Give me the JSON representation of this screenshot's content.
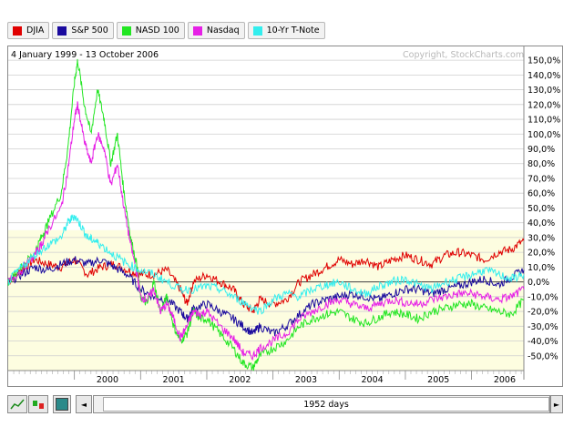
{
  "legend": [
    {
      "name": "DJIA",
      "color": "#e00000"
    },
    {
      "name": "S&P 500",
      "color": "#1a0a9e"
    },
    {
      "name": "NASD 100",
      "color": "#22e622"
    },
    {
      "name": "Nasdaq",
      "color": "#e620e6"
    },
    {
      "name": "10-Yr T-Note",
      "color": "#33eeee"
    }
  ],
  "header": {
    "date_range": "4 January 1999 - 13 October 2006",
    "copyright": "Copyright, StockCharts.com"
  },
  "toolbar": {
    "range_label": "1952 days",
    "scroll_left_icon": "◄",
    "scroll_right_icon": "►"
  },
  "chart_data": {
    "type": "line",
    "title": "",
    "subtitle": "4 January 1999 - 13 October 2006",
    "xlabel": "",
    "ylabel": "",
    "x_ticks": [
      "2000",
      "2001",
      "2002",
      "2003",
      "2004",
      "2005",
      "2006"
    ],
    "y_ticks": [
      "150,0%",
      "140,0%",
      "130,0%",
      "120,0%",
      "110,0%",
      "100,0%",
      "90,0%",
      "80,0%",
      "70,0%",
      "60,0%",
      "50,0%",
      "40,0%",
      "30,0%",
      "20,0%",
      "10,0%",
      "0,0%",
      "-10,0%",
      "-20,0%",
      "-30,0%",
      "-40,0%",
      "-50,0%"
    ],
    "ylim": [
      -60,
      155
    ],
    "xlim": [
      1999.0,
      2006.79
    ],
    "grid": true,
    "legend_position": "top",
    "series": [
      {
        "name": "DJIA",
        "color": "#e00000",
        "x": [
          1999.0,
          1999.2,
          1999.4,
          1999.6,
          1999.8,
          2000.0,
          2000.2,
          2000.4,
          2000.6,
          2000.8,
          2001.0,
          2001.2,
          2001.4,
          2001.6,
          2001.7,
          2001.8,
          2002.0,
          2002.2,
          2002.4,
          2002.55,
          2002.7,
          2002.8,
          2003.0,
          2003.2,
          2003.4,
          2003.6,
          2003.8,
          2004.0,
          2004.2,
          2004.4,
          2004.6,
          2004.8,
          2005.0,
          2005.2,
          2005.4,
          2005.6,
          2005.8,
          2006.0,
          2006.2,
          2006.4,
          2006.6,
          2006.79
        ],
        "y": [
          0,
          8,
          15,
          12,
          10,
          15,
          5,
          10,
          12,
          8,
          5,
          5,
          8,
          -5,
          -15,
          0,
          5,
          0,
          -5,
          -15,
          -20,
          -12,
          -15,
          -12,
          0,
          5,
          10,
          15,
          12,
          15,
          10,
          15,
          18,
          15,
          12,
          18,
          20,
          18,
          15,
          20,
          22,
          28
        ]
      },
      {
        "name": "S&P 500",
        "color": "#1a0a9e",
        "x": [
          1999.0,
          1999.2,
          1999.4,
          1999.6,
          1999.8,
          2000.0,
          2000.2,
          2000.4,
          2000.6,
          2000.8,
          2001.0,
          2001.2,
          2001.4,
          2001.6,
          2001.7,
          2001.8,
          2002.0,
          2002.2,
          2002.4,
          2002.55,
          2002.7,
          2002.8,
          2003.0,
          2003.2,
          2003.4,
          2003.6,
          2003.8,
          2004.0,
          2004.2,
          2004.4,
          2004.6,
          2004.8,
          2005.0,
          2005.2,
          2005.4,
          2005.6,
          2005.8,
          2006.0,
          2006.2,
          2006.4,
          2006.6,
          2006.79
        ],
        "y": [
          0,
          5,
          10,
          8,
          12,
          15,
          12,
          15,
          10,
          5,
          -5,
          -10,
          -12,
          -20,
          -25,
          -18,
          -15,
          -20,
          -25,
          -30,
          -35,
          -30,
          -35,
          -30,
          -22,
          -15,
          -12,
          -10,
          -8,
          -10,
          -12,
          -8,
          -5,
          -5,
          -8,
          -5,
          -3,
          0,
          2,
          -2,
          3,
          8
        ]
      },
      {
        "name": "NASD 100",
        "color": "#22e622",
        "x": [
          1999.0,
          1999.2,
          1999.4,
          1999.5,
          1999.6,
          1999.8,
          1999.9,
          2000.0,
          2000.05,
          2000.15,
          2000.25,
          2000.35,
          2000.45,
          2000.55,
          2000.65,
          2000.75,
          2000.85,
          2000.95,
          2001.0,
          2001.1,
          2001.2,
          2001.3,
          2001.4,
          2001.5,
          2001.6,
          2001.7,
          2001.8,
          2001.9,
          2002.0,
          2002.2,
          2002.4,
          2002.55,
          2002.7,
          2002.8,
          2003.0,
          2003.2,
          2003.4,
          2003.6,
          2003.8,
          2004.0,
          2004.2,
          2004.4,
          2004.6,
          2004.8,
          2005.0,
          2005.2,
          2005.4,
          2005.6,
          2005.8,
          2006.0,
          2006.2,
          2006.4,
          2006.6,
          2006.79
        ],
        "y": [
          0,
          10,
          20,
          30,
          40,
          60,
          90,
          135,
          150,
          120,
          100,
          130,
          110,
          80,
          100,
          60,
          30,
          10,
          -10,
          -15,
          0,
          -20,
          -10,
          -30,
          -40,
          -35,
          -20,
          -25,
          -25,
          -35,
          -45,
          -55,
          -58,
          -50,
          -45,
          -40,
          -30,
          -25,
          -22,
          -20,
          -25,
          -28,
          -24,
          -20,
          -22,
          -25,
          -20,
          -18,
          -15,
          -15,
          -18,
          -20,
          -22,
          -12
        ]
      },
      {
        "name": "Nasdaq",
        "color": "#e620e6",
        "x": [
          1999.0,
          1999.2,
          1999.4,
          1999.5,
          1999.6,
          1999.8,
          1999.9,
          2000.0,
          2000.05,
          2000.15,
          2000.25,
          2000.35,
          2000.45,
          2000.55,
          2000.65,
          2000.75,
          2000.85,
          2000.95,
          2001.0,
          2001.1,
          2001.2,
          2001.3,
          2001.4,
          2001.5,
          2001.6,
          2001.7,
          2001.8,
          2001.9,
          2002.0,
          2002.2,
          2002.4,
          2002.55,
          2002.7,
          2002.8,
          2003.0,
          2003.2,
          2003.4,
          2003.6,
          2003.8,
          2004.0,
          2004.2,
          2004.4,
          2004.6,
          2004.8,
          2005.0,
          2005.2,
          2005.4,
          2005.6,
          2005.8,
          2006.0,
          2006.2,
          2006.4,
          2006.6,
          2006.79
        ],
        "y": [
          0,
          8,
          18,
          25,
          35,
          50,
          75,
          110,
          120,
          95,
          80,
          100,
          90,
          65,
          80,
          50,
          25,
          5,
          -10,
          -12,
          -5,
          -20,
          -15,
          -25,
          -38,
          -30,
          -20,
          -22,
          -20,
          -30,
          -38,
          -48,
          -50,
          -45,
          -40,
          -35,
          -25,
          -20,
          -15,
          -12,
          -15,
          -18,
          -15,
          -12,
          -14,
          -15,
          -12,
          -10,
          -8,
          -8,
          -10,
          -12,
          -10,
          -5
        ]
      },
      {
        "name": "10-Yr T-Note",
        "color": "#33eeee",
        "x": [
          1999.0,
          1999.2,
          1999.4,
          1999.6,
          1999.8,
          1999.9,
          2000.0,
          2000.1,
          2000.2,
          2000.3,
          2000.4,
          2000.6,
          2000.8,
          2001.0,
          2001.2,
          2001.4,
          2001.6,
          2001.8,
          2002.0,
          2002.2,
          2002.4,
          2002.6,
          2002.8,
          2003.0,
          2003.2,
          2003.4,
          2003.6,
          2003.8,
          2004.0,
          2004.2,
          2004.4,
          2004.6,
          2004.8,
          2005.0,
          2005.2,
          2005.4,
          2005.6,
          2005.8,
          2006.0,
          2006.2,
          2006.4,
          2006.6,
          2006.79
        ],
        "y": [
          0,
          10,
          18,
          25,
          30,
          40,
          45,
          38,
          30,
          28,
          25,
          18,
          12,
          8,
          5,
          0,
          -5,
          -5,
          -3,
          -5,
          -10,
          -15,
          -20,
          -12,
          -8,
          -10,
          -5,
          -2,
          0,
          -5,
          -8,
          -3,
          0,
          2,
          -2,
          -5,
          0,
          2,
          5,
          8,
          5,
          2,
          5
        ]
      }
    ]
  }
}
